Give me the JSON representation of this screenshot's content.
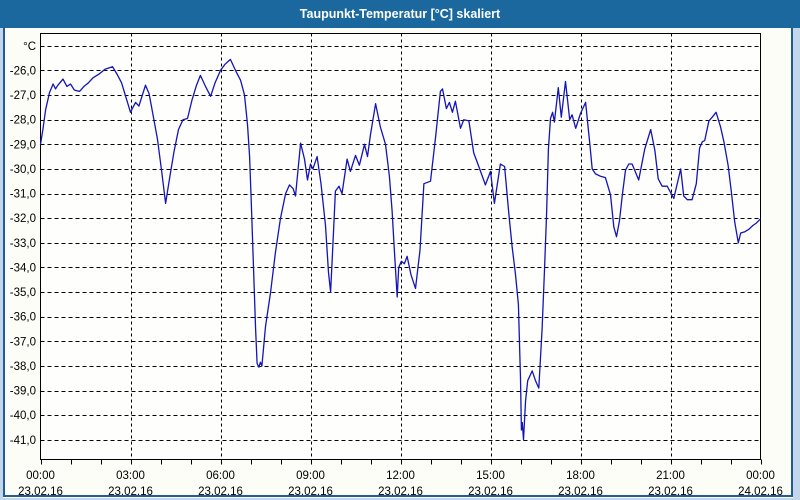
{
  "window": {
    "title": "Taupunkt-Temperatur [°C] skaliert"
  },
  "colors": {
    "titlebar_bg": "#1a689e",
    "titlebar_text": "#ffffff",
    "frame_light": "#c4d6ec",
    "frame_border": "#215d92",
    "content_bg": "#fdfdf8",
    "plot_bg": "#fefefc",
    "grid": "#000000",
    "axis_text": "#000000",
    "series_line": "#1414b8"
  },
  "chart_data": {
    "type": "line",
    "title": "Taupunkt-Temperatur [°C] skaliert",
    "grid_style": "dashed",
    "legend": "none",
    "x_axis": {
      "unit": "time",
      "range_hours": [
        0,
        24
      ],
      "minor_tick_every_hours": 1,
      "major_gridline_every_hours": 3,
      "tick_labels": [
        {
          "time": "00:00",
          "date": "23.02.16"
        },
        {
          "time": "03:00",
          "date": "23.02.16"
        },
        {
          "time": "06:00",
          "date": "23.02.16"
        },
        {
          "time": "09:00",
          "date": "23.02.16"
        },
        {
          "time": "12:00",
          "date": "23.02.16"
        },
        {
          "time": "15:00",
          "date": "23.02.16"
        },
        {
          "time": "18:00",
          "date": "23.02.16"
        },
        {
          "time": "21:00",
          "date": "23.02.16"
        },
        {
          "time": "00:00",
          "date": "24.02.16"
        }
      ]
    },
    "y_axis": {
      "unit_label": "°C",
      "range": [
        -41.8,
        -24.5
      ],
      "gridline_temps": [
        -25,
        -26,
        -27,
        -28,
        -29,
        -30,
        -31,
        -32,
        -33,
        -34,
        -35,
        -36,
        -37,
        -38,
        -39,
        -40,
        -41
      ],
      "tick_labels": [
        "-26,0",
        "-27,0",
        "-28,0",
        "-29,0",
        "-30,0",
        "-31,0",
        "-32,0",
        "-33,0",
        "-34,0",
        "-35,0",
        "-36,0",
        "-37,0",
        "-38,0",
        "-39,0",
        "-40,0",
        "-41,0"
      ]
    },
    "series": [
      {
        "name": "Taupunkt-Temperatur",
        "points": [
          [
            0.0,
            -29.0
          ],
          [
            0.08,
            -28.4
          ],
          [
            0.17,
            -27.6
          ],
          [
            0.3,
            -26.9
          ],
          [
            0.42,
            -26.55
          ],
          [
            0.5,
            -26.75
          ],
          [
            0.58,
            -26.6
          ],
          [
            0.75,
            -26.35
          ],
          [
            0.88,
            -26.65
          ],
          [
            1.0,
            -26.55
          ],
          [
            1.13,
            -26.8
          ],
          [
            1.3,
            -26.85
          ],
          [
            1.45,
            -26.65
          ],
          [
            1.6,
            -26.5
          ],
          [
            1.75,
            -26.3
          ],
          [
            1.95,
            -26.15
          ],
          [
            2.15,
            -25.95
          ],
          [
            2.4,
            -25.85
          ],
          [
            2.55,
            -26.15
          ],
          [
            2.7,
            -26.5
          ],
          [
            2.85,
            -27.1
          ],
          [
            3.0,
            -27.7
          ],
          [
            3.08,
            -27.5
          ],
          [
            3.17,
            -27.3
          ],
          [
            3.28,
            -27.45
          ],
          [
            3.5,
            -26.6
          ],
          [
            3.62,
            -26.95
          ],
          [
            3.75,
            -27.8
          ],
          [
            3.9,
            -28.8
          ],
          [
            4.05,
            -30.2
          ],
          [
            4.17,
            -31.4
          ],
          [
            4.3,
            -30.4
          ],
          [
            4.45,
            -29.3
          ],
          [
            4.6,
            -28.4
          ],
          [
            4.75,
            -28.0
          ],
          [
            4.9,
            -27.95
          ],
          [
            5.05,
            -27.2
          ],
          [
            5.2,
            -26.6
          ],
          [
            5.33,
            -26.2
          ],
          [
            5.5,
            -26.65
          ],
          [
            5.67,
            -27.05
          ],
          [
            5.82,
            -26.5
          ],
          [
            6.0,
            -26.0
          ],
          [
            6.15,
            -25.75
          ],
          [
            6.33,
            -25.55
          ],
          [
            6.5,
            -26.0
          ],
          [
            6.67,
            -26.4
          ],
          [
            6.8,
            -27.0
          ],
          [
            6.9,
            -28.2
          ],
          [
            6.97,
            -29.5
          ],
          [
            7.03,
            -31.5
          ],
          [
            7.1,
            -34.0
          ],
          [
            7.17,
            -36.5
          ],
          [
            7.22,
            -37.9
          ],
          [
            7.28,
            -38.05
          ],
          [
            7.33,
            -37.85
          ],
          [
            7.38,
            -38.0
          ],
          [
            7.5,
            -36.4
          ],
          [
            7.67,
            -35.0
          ],
          [
            7.83,
            -33.4
          ],
          [
            8.0,
            -32.0
          ],
          [
            8.17,
            -31.0
          ],
          [
            8.3,
            -30.65
          ],
          [
            8.42,
            -30.8
          ],
          [
            8.5,
            -31.1
          ],
          [
            8.67,
            -28.95
          ],
          [
            8.8,
            -29.6
          ],
          [
            8.9,
            -30.45
          ],
          [
            9.0,
            -29.8
          ],
          [
            9.08,
            -30.0
          ],
          [
            9.22,
            -29.5
          ],
          [
            9.35,
            -30.6
          ],
          [
            9.5,
            -32.3
          ],
          [
            9.6,
            -34.2
          ],
          [
            9.67,
            -35.0
          ],
          [
            9.75,
            -33.0
          ],
          [
            9.83,
            -30.9
          ],
          [
            9.95,
            -30.7
          ],
          [
            10.05,
            -31.0
          ],
          [
            10.22,
            -29.6
          ],
          [
            10.33,
            -30.1
          ],
          [
            10.5,
            -29.45
          ],
          [
            10.63,
            -29.85
          ],
          [
            10.8,
            -29.0
          ],
          [
            10.9,
            -29.5
          ],
          [
            11.0,
            -28.6
          ],
          [
            11.17,
            -27.35
          ],
          [
            11.33,
            -28.3
          ],
          [
            11.5,
            -29.0
          ],
          [
            11.63,
            -30.3
          ],
          [
            11.72,
            -31.7
          ],
          [
            11.8,
            -33.4
          ],
          [
            11.89,
            -35.2
          ],
          [
            11.94,
            -34.0
          ],
          [
            12.03,
            -33.75
          ],
          [
            12.13,
            -33.85
          ],
          [
            12.22,
            -33.55
          ],
          [
            12.35,
            -34.3
          ],
          [
            12.5,
            -34.85
          ],
          [
            12.65,
            -33.3
          ],
          [
            12.78,
            -30.6
          ],
          [
            13.0,
            -30.5
          ],
          [
            13.17,
            -28.7
          ],
          [
            13.33,
            -26.85
          ],
          [
            13.4,
            -26.75
          ],
          [
            13.53,
            -27.55
          ],
          [
            13.63,
            -27.3
          ],
          [
            13.73,
            -27.7
          ],
          [
            13.83,
            -27.25
          ],
          [
            14.0,
            -28.35
          ],
          [
            14.11,
            -28.0
          ],
          [
            14.28,
            -28.05
          ],
          [
            14.44,
            -29.35
          ],
          [
            14.61,
            -29.9
          ],
          [
            14.83,
            -30.65
          ],
          [
            15.0,
            -30.1
          ],
          [
            15.13,
            -31.4
          ],
          [
            15.33,
            -29.8
          ],
          [
            15.47,
            -29.9
          ],
          [
            15.61,
            -31.8
          ],
          [
            15.72,
            -33.15
          ],
          [
            15.83,
            -34.25
          ],
          [
            15.93,
            -35.5
          ],
          [
            16.0,
            -38.5
          ],
          [
            16.03,
            -40.6
          ],
          [
            16.06,
            -40.3
          ],
          [
            16.1,
            -41.0
          ],
          [
            16.17,
            -39.4
          ],
          [
            16.24,
            -38.6
          ],
          [
            16.39,
            -38.2
          ],
          [
            16.5,
            -38.6
          ],
          [
            16.61,
            -38.9
          ],
          [
            16.72,
            -36.5
          ],
          [
            16.8,
            -34.1
          ],
          [
            16.87,
            -31.8
          ],
          [
            16.93,
            -29.2
          ],
          [
            17.0,
            -27.95
          ],
          [
            17.07,
            -27.7
          ],
          [
            17.13,
            -28.1
          ],
          [
            17.26,
            -26.7
          ],
          [
            17.36,
            -27.9
          ],
          [
            17.5,
            -26.45
          ],
          [
            17.64,
            -28.0
          ],
          [
            17.72,
            -27.8
          ],
          [
            17.84,
            -28.35
          ],
          [
            18.0,
            -27.75
          ],
          [
            18.17,
            -27.3
          ],
          [
            18.3,
            -28.85
          ],
          [
            18.39,
            -30.0
          ],
          [
            18.5,
            -30.2
          ],
          [
            18.67,
            -30.3
          ],
          [
            18.83,
            -30.35
          ],
          [
            19.0,
            -31.05
          ],
          [
            19.11,
            -32.35
          ],
          [
            19.2,
            -32.75
          ],
          [
            19.3,
            -32.1
          ],
          [
            19.4,
            -31.0
          ],
          [
            19.5,
            -30.05
          ],
          [
            19.61,
            -29.8
          ],
          [
            19.72,
            -29.8
          ],
          [
            19.94,
            -30.45
          ],
          [
            20.14,
            -29.2
          ],
          [
            20.34,
            -28.4
          ],
          [
            20.48,
            -29.25
          ],
          [
            20.59,
            -30.4
          ],
          [
            20.72,
            -30.7
          ],
          [
            20.89,
            -30.7
          ],
          [
            21.11,
            -31.2
          ],
          [
            21.34,
            -30.0
          ],
          [
            21.44,
            -31.1
          ],
          [
            21.56,
            -31.25
          ],
          [
            21.72,
            -31.25
          ],
          [
            21.86,
            -30.6
          ],
          [
            21.97,
            -29.15
          ],
          [
            22.06,
            -28.9
          ],
          [
            22.14,
            -28.85
          ],
          [
            22.28,
            -28.05
          ],
          [
            22.39,
            -27.9
          ],
          [
            22.52,
            -27.7
          ],
          [
            22.67,
            -28.3
          ],
          [
            22.78,
            -28.9
          ],
          [
            22.92,
            -29.85
          ],
          [
            23.03,
            -30.95
          ],
          [
            23.14,
            -32.15
          ],
          [
            23.26,
            -33.0
          ],
          [
            23.34,
            -32.6
          ],
          [
            23.48,
            -32.55
          ],
          [
            23.61,
            -32.45
          ],
          [
            23.74,
            -32.3
          ],
          [
            23.86,
            -32.2
          ],
          [
            23.98,
            -32.05
          ]
        ]
      }
    ]
  }
}
